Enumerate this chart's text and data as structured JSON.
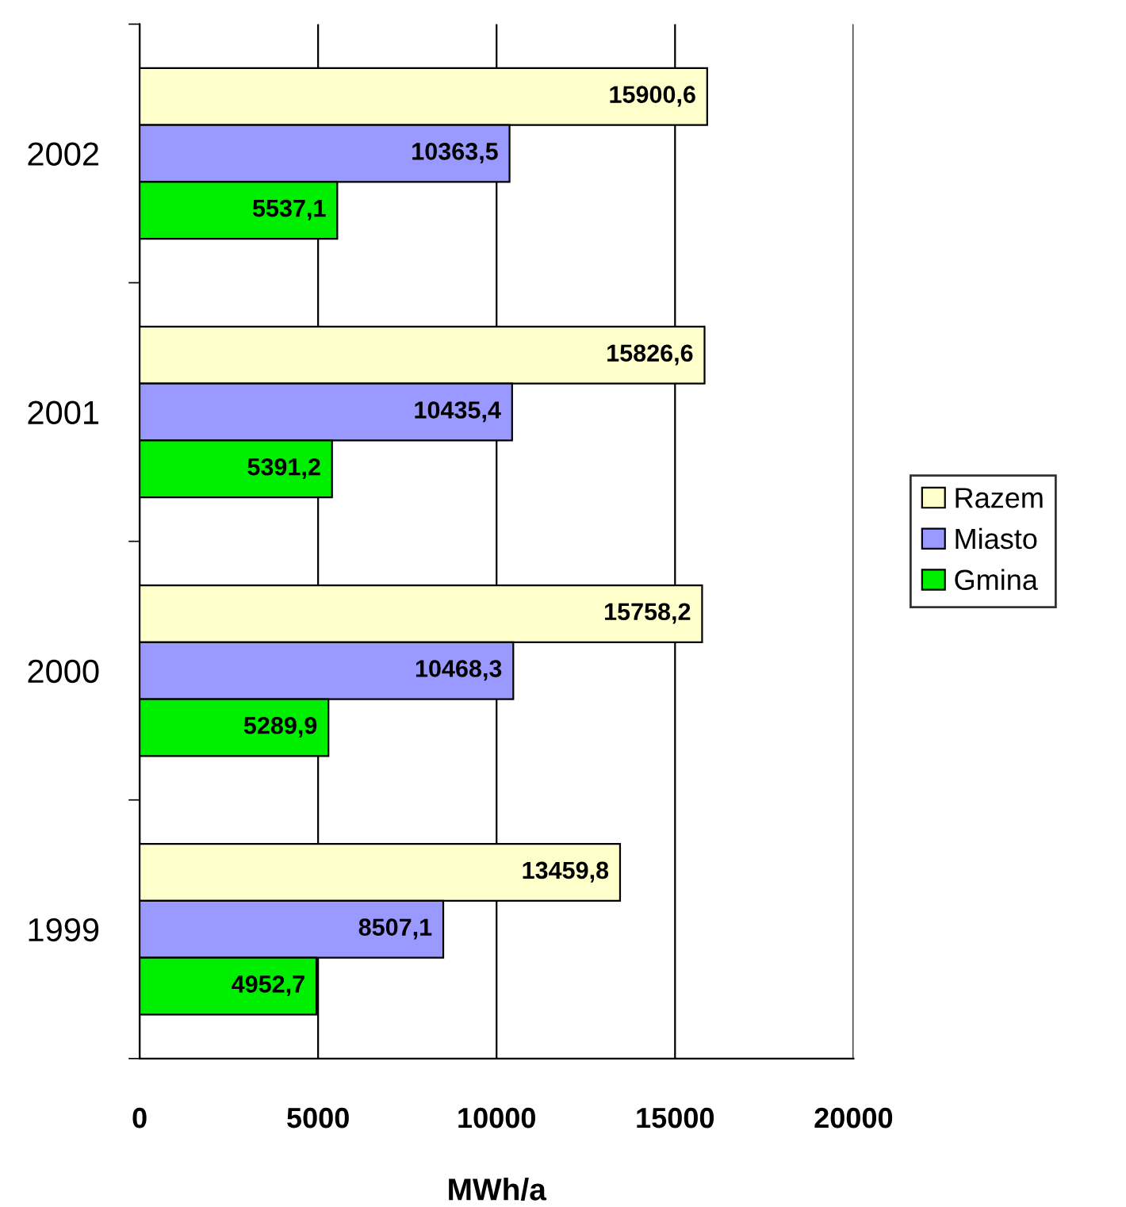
{
  "chart_data": {
    "type": "bar",
    "orientation": "horizontal",
    "xlabel": "MWh/a",
    "categories": [
      "2002",
      "2001",
      "2000",
      "1999"
    ],
    "series": [
      {
        "name": "Razem",
        "color": "#ffffcc",
        "values": [
          15900.6,
          15826.6,
          15758.2,
          13459.8
        ],
        "value_labels": [
          "15900,6",
          "15826,6",
          "15758,2",
          "13459,8"
        ]
      },
      {
        "name": "Miasto",
        "color": "#9999ff",
        "values": [
          10363.5,
          10435.4,
          10468.3,
          8507.1
        ],
        "value_labels": [
          "10363,5",
          "10435,4",
          "10468,3",
          "8507,1"
        ]
      },
      {
        "name": "Gmina",
        "color": "#00ee00",
        "values": [
          5537.1,
          5391.2,
          5289.9,
          4952.7
        ],
        "value_labels": [
          "5537,1",
          "5391,2",
          "5289,9",
          "4952,7"
        ]
      }
    ],
    "xlim": [
      0,
      20000
    ],
    "xticks": [
      0,
      5000,
      10000,
      15000,
      20000
    ],
    "grid": "x",
    "legend": "right"
  }
}
